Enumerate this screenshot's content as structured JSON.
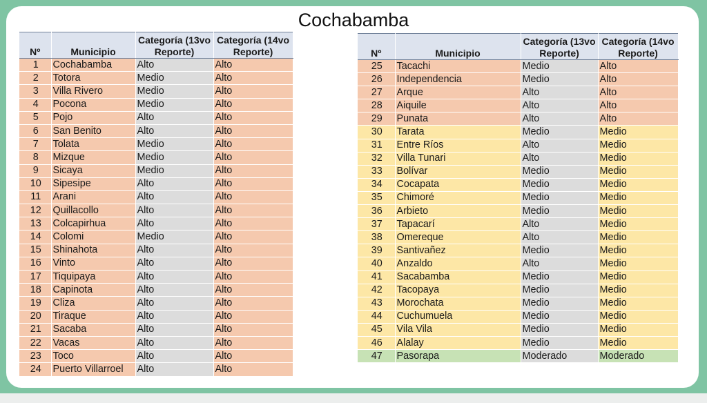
{
  "title": "Cochabamba",
  "headers": {
    "num": "Nº",
    "municipio": "Municipio",
    "cat13": "Categoría (13vo Reporte)",
    "cat14": "Categoría (14vo Reporte)"
  },
  "left_rows": [
    {
      "n": "1",
      "m": "Cochabamba",
      "c13": "Alto",
      "c14": "Alto"
    },
    {
      "n": "2",
      "m": "Totora",
      "c13": "Medio",
      "c14": "Alto"
    },
    {
      "n": "3",
      "m": "Villa Rivero",
      "c13": "Medio",
      "c14": "Alto"
    },
    {
      "n": "4",
      "m": "Pocona",
      "c13": "Medio",
      "c14": "Alto"
    },
    {
      "n": "5",
      "m": "Pojo",
      "c13": "Alto",
      "c14": "Alto"
    },
    {
      "n": "6",
      "m": "San Benito",
      "c13": "Alto",
      "c14": "Alto"
    },
    {
      "n": "7",
      "m": "Tolata",
      "c13": "Medio",
      "c14": "Alto"
    },
    {
      "n": "8",
      "m": "Mizque",
      "c13": "Medio",
      "c14": "Alto"
    },
    {
      "n": "9",
      "m": "Sicaya",
      "c13": "Medio",
      "c14": "Alto"
    },
    {
      "n": "10",
      "m": "Sipesipe",
      "c13": "Alto",
      "c14": "Alto"
    },
    {
      "n": "11",
      "m": "Arani",
      "c13": "Alto",
      "c14": "Alto"
    },
    {
      "n": "12",
      "m": "Quillacollo",
      "c13": "Alto",
      "c14": "Alto"
    },
    {
      "n": "13",
      "m": "Colcapirhua",
      "c13": "Alto",
      "c14": "Alto"
    },
    {
      "n": "14",
      "m": "Colomi",
      "c13": "Medio",
      "c14": "Alto"
    },
    {
      "n": "15",
      "m": "Shinahota",
      "c13": "Alto",
      "c14": "Alto"
    },
    {
      "n": "16",
      "m": "Vinto",
      "c13": "Alto",
      "c14": "Alto"
    },
    {
      "n": "17",
      "m": "Tiquipaya",
      "c13": "Alto",
      "c14": "Alto"
    },
    {
      "n": "18",
      "m": "Capinota",
      "c13": "Alto",
      "c14": "Alto"
    },
    {
      "n": "19",
      "m": "Cliza",
      "c13": "Alto",
      "c14": "Alto"
    },
    {
      "n": "20",
      "m": "Tiraque",
      "c13": "Alto",
      "c14": "Alto"
    },
    {
      "n": "21",
      "m": "Sacaba",
      "c13": "Alto",
      "c14": "Alto"
    },
    {
      "n": "22",
      "m": "Vacas",
      "c13": "Alto",
      "c14": "Alto"
    },
    {
      "n": "23",
      "m": "Toco",
      "c13": "Alto",
      "c14": "Alto"
    },
    {
      "n": "24",
      "m": "Puerto Villarroel",
      "c13": "Alto",
      "c14": "Alto"
    }
  ],
  "right_rows": [
    {
      "n": "25",
      "m": "Tacachi",
      "c13": "Medio",
      "c14": "Alto"
    },
    {
      "n": "26",
      "m": "Independencia",
      "c13": "Medio",
      "c14": "Alto"
    },
    {
      "n": "27",
      "m": "Arque",
      "c13": "Alto",
      "c14": "Alto"
    },
    {
      "n": "28",
      "m": "Aiquile",
      "c13": "Alto",
      "c14": "Alto"
    },
    {
      "n": "29",
      "m": "Punata",
      "c13": "Alto",
      "c14": "Alto"
    },
    {
      "n": "30",
      "m": "Tarata",
      "c13": "Medio",
      "c14": "Medio"
    },
    {
      "n": "31",
      "m": "Entre Ríos",
      "c13": "Alto",
      "c14": "Medio"
    },
    {
      "n": "32",
      "m": "Villa Tunari",
      "c13": "Alto",
      "c14": "Medio"
    },
    {
      "n": "33",
      "m": "Bolívar",
      "c13": "Medio",
      "c14": "Medio"
    },
    {
      "n": "34",
      "m": "Cocapata",
      "c13": "Medio",
      "c14": "Medio"
    },
    {
      "n": "35",
      "m": "Chimoré",
      "c13": "Medio",
      "c14": "Medio"
    },
    {
      "n": "36",
      "m": "Arbieto",
      "c13": "Medio",
      "c14": "Medio"
    },
    {
      "n": "37",
      "m": "Tapacarí",
      "c13": "Alto",
      "c14": "Medio"
    },
    {
      "n": "38",
      "m": "Omereque",
      "c13": "Alto",
      "c14": "Medio"
    },
    {
      "n": "39",
      "m": "Santivañez",
      "c13": "Medio",
      "c14": "Medio"
    },
    {
      "n": "40",
      "m": "Anzaldo",
      "c13": "Alto",
      "c14": "Medio"
    },
    {
      "n": "41",
      "m": "Sacabamba",
      "c13": "Medio",
      "c14": "Medio"
    },
    {
      "n": "42",
      "m": "Tacopaya",
      "c13": "Medio",
      "c14": "Medio"
    },
    {
      "n": "43",
      "m": "Morochata",
      "c13": "Medio",
      "c14": "Medio"
    },
    {
      "n": "44",
      "m": "Cuchumuela",
      "c13": "Medio",
      "c14": "Medio"
    },
    {
      "n": "45",
      "m": "Vila Vila",
      "c13": "Medio",
      "c14": "Medio"
    },
    {
      "n": "46",
      "m": "Alalay",
      "c13": "Medio",
      "c14": "Medio"
    },
    {
      "n": "47",
      "m": "Pasorapa",
      "c13": "Moderado",
      "c14": "Moderado"
    }
  ],
  "colors": {
    "alto": "#f5c9ae",
    "medio": "#fde7a6",
    "moderado": "#c7e2b5",
    "cat13_column": "#dcdcdc",
    "header": "#dde3ee",
    "frame": "#7fc4a3"
  }
}
